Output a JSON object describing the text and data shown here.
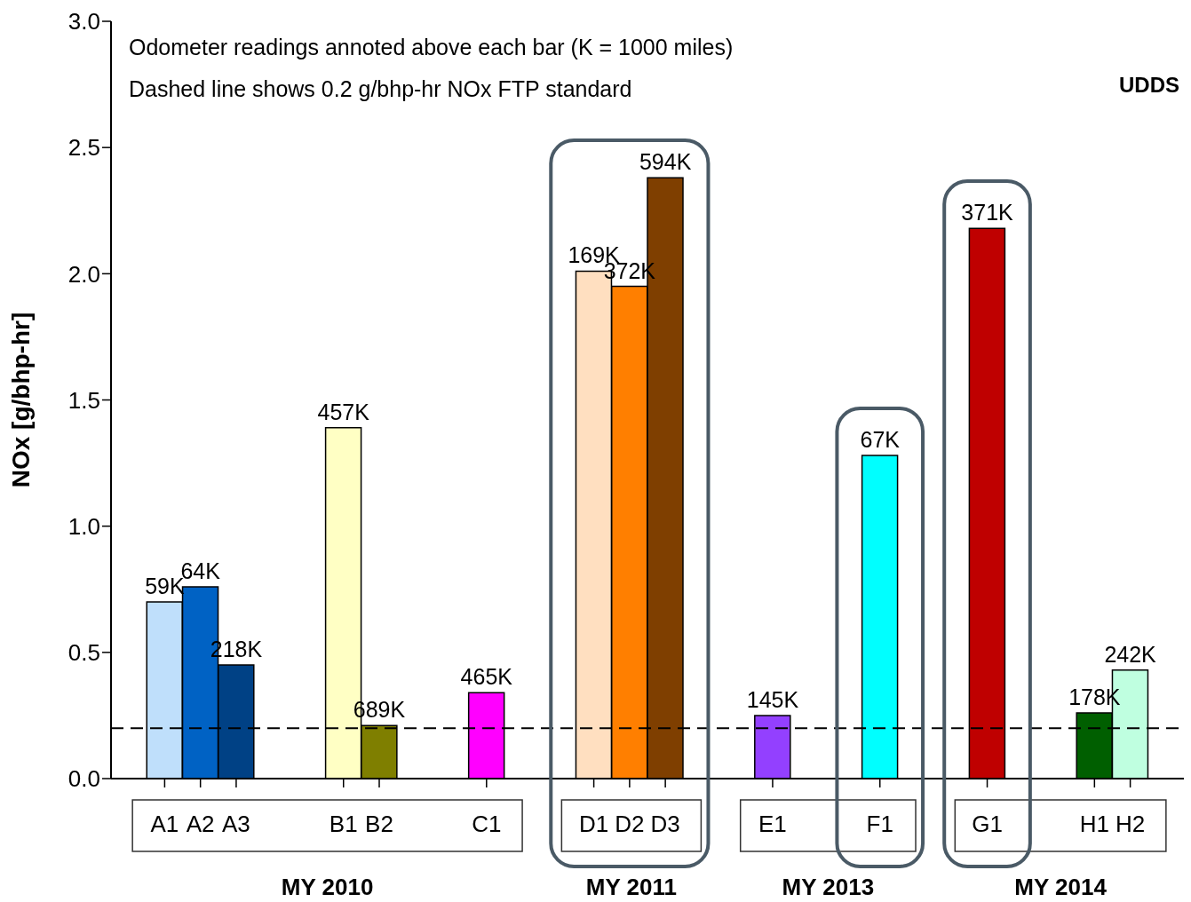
{
  "chart_data": {
    "type": "bar",
    "ylabel": "NOx [g/bhp-hr]",
    "categories": [
      null,
      "A1",
      "A2",
      "A3",
      null,
      null,
      "B1",
      "B2",
      null,
      null,
      "C1",
      null,
      null,
      "D1",
      "D2",
      "D3",
      null,
      null,
      "E1",
      null,
      null,
      "F1",
      null,
      null,
      "G1",
      null,
      null,
      "H1",
      "H2",
      null
    ],
    "values": [
      null,
      0.7,
      0.76,
      0.45,
      null,
      null,
      1.39,
      0.21,
      null,
      null,
      0.34,
      null,
      null,
      2.01,
      1.95,
      2.38,
      null,
      null,
      0.25,
      null,
      null,
      1.28,
      null,
      null,
      2.18,
      null,
      null,
      0.26,
      0.43,
      null
    ],
    "colors": [
      "#ffffff",
      "#bfdffb",
      "#0062c4",
      "#004185",
      "#ffffff",
      "#ffffff",
      "#ffffc4",
      "#7f7f00",
      "#ffffff",
      "#ffffff",
      "#ff00ff",
      "#ffffff",
      "#ffffff",
      "#ffdfc0",
      "#ff7f00",
      "#7f3f00",
      "#ffffff",
      "#ffffff",
      "#9340ff",
      "#ffffff",
      "#ffffff",
      "#00ffff",
      "#ffffff",
      "#ffffff",
      "#bf0000",
      "#ffffff",
      "#ffffff",
      "#005f00",
      "#bfffe0",
      "#ffffff"
    ],
    "ylim": [
      0,
      3
    ],
    "yticks": [
      {
        "value": 0,
        "label": "0.0"
      },
      0.5,
      {
        "value": 1,
        "label": "1.0"
      },
      1.5,
      {
        "value": 2,
        "label": "2.0"
      },
      2.5,
      {
        "value": 3,
        "label": "3.0"
      }
    ],
    "ref_lines": [
      {
        "axis": "y",
        "value": 0.2,
        "color": "#000000",
        "line_style": "dashed"
      }
    ],
    "annotations": [
      "Odometer readings annoted above each bar (K = 1000 miles)",
      "Dashed line shows 0.2 g/bhp-hr NOx FTP standard",
      "UDDS",
      "MY 2010",
      "MY 2011",
      "MY 2013",
      "MY 2014",
      {
        "text": "59K",
        "x": "A1",
        "y": 0.7
      },
      {
        "text": "64K",
        "x": "A2",
        "y": 0.76
      },
      {
        "text": "218K",
        "x": "A3",
        "y": 0.45
      },
      {
        "text": "457K",
        "x": "B1",
        "y": 1.39
      },
      {
        "text": "689K",
        "x": "B2",
        "y": 0.21
      },
      {
        "text": "465K",
        "x": "C1",
        "y": 0.34
      },
      {
        "text": "169K",
        "x": "D1",
        "y": 2.01
      },
      {
        "text": "372K",
        "x": "D2",
        "y": 1.95
      },
      {
        "text": "594K",
        "x": "D3",
        "y": 2.38
      },
      {
        "text": "145K",
        "x": "E1",
        "y": 0.25
      },
      {
        "text": "67K",
        "x": "F1",
        "y": 1.28
      },
      {
        "text": "371K",
        "x": "G1",
        "y": 2.18
      },
      {
        "text": "178K",
        "x": "H1",
        "y": 0.26
      },
      {
        "text": "242K",
        "x": "H2",
        "y": 0.43
      }
    ]
  }
}
